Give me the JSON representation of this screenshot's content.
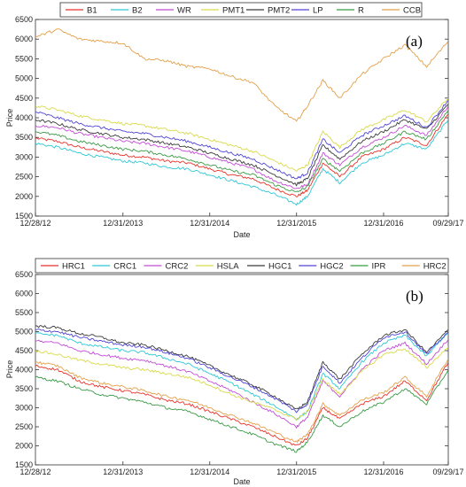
{
  "chart_data": [
    {
      "type": "line",
      "panel_label": "(a)",
      "xlabel": "Date",
      "ylabel": "Price",
      "ylim": [
        1500,
        6500
      ],
      "yticks": [
        1500,
        2000,
        2500,
        3000,
        3500,
        4000,
        4500,
        5000,
        5500,
        6000,
        6500
      ],
      "x_ticks": [
        "12/28/12",
        "12/31/2013",
        "12/31/2014",
        "12/31/2015",
        "12/31/2016",
        "09/29/17"
      ],
      "x_tick_dates": [
        "2012-12-28",
        "2013-12-31",
        "2014-12-31",
        "2015-12-31",
        "2016-12-31",
        "2017-09-29"
      ],
      "legend_position": "top",
      "x_dates": [
        "2012-12-28",
        "2013-03-31",
        "2013-06-30",
        "2013-09-30",
        "2013-12-31",
        "2014-03-31",
        "2014-06-30",
        "2014-09-30",
        "2014-12-31",
        "2015-03-31",
        "2015-06-30",
        "2015-09-30",
        "2015-12-31",
        "2016-02-15",
        "2016-04-20",
        "2016-06-30",
        "2016-09-30",
        "2016-12-31",
        "2017-03-31",
        "2017-06-30",
        "2017-09-29"
      ],
      "series": [
        {
          "name": "B1",
          "color": "#e8332b",
          "values": [
            3480,
            3400,
            3250,
            3150,
            3050,
            3000,
            2900,
            2850,
            2700,
            2550,
            2450,
            2200,
            2000,
            2150,
            2850,
            2500,
            3000,
            3200,
            3500,
            3300,
            4100
          ]
        },
        {
          "name": "B2",
          "color": "#2ec7d6",
          "values": [
            3350,
            3250,
            3100,
            3000,
            2900,
            2850,
            2750,
            2700,
            2550,
            2400,
            2250,
            2050,
            1800,
            2000,
            2700,
            2350,
            2850,
            3050,
            3350,
            3200,
            3950
          ]
        },
        {
          "name": "WR",
          "color": "#c34bd6",
          "values": [
            3800,
            3750,
            3600,
            3500,
            3400,
            3350,
            3250,
            3150,
            3000,
            2850,
            2700,
            2400,
            2200,
            2300,
            3100,
            2800,
            3250,
            3500,
            3800,
            3550,
            4300
          ]
        },
        {
          "name": "PMT1",
          "color": "#d9d94a",
          "values": [
            4300,
            4200,
            4050,
            3950,
            3850,
            3800,
            3700,
            3600,
            3450,
            3300,
            3150,
            2900,
            2650,
            2800,
            3650,
            3250,
            3700,
            3950,
            4200,
            3900,
            4500
          ]
        },
        {
          "name": "PMT2",
          "color": "#3a3a3a",
          "values": [
            3950,
            3850,
            3700,
            3600,
            3500,
            3450,
            3350,
            3250,
            3100,
            2950,
            2800,
            2550,
            2300,
            2450,
            3300,
            2950,
            3400,
            3650,
            3950,
            3700,
            4350
          ]
        },
        {
          "name": "LP",
          "color": "#5045d6",
          "values": [
            4150,
            4000,
            3850,
            3750,
            3650,
            3600,
            3500,
            3400,
            3250,
            3100,
            2950,
            2700,
            2450,
            2600,
            3450,
            3100,
            3550,
            3800,
            4050,
            3750,
            4450
          ]
        },
        {
          "name": "R",
          "color": "#3a9a45",
          "values": [
            3650,
            3550,
            3400,
            3300,
            3200,
            3150,
            3050,
            2950,
            2800,
            2650,
            2550,
            2300,
            2100,
            2250,
            2950,
            2650,
            3100,
            3350,
            3650,
            3450,
            4200
          ]
        },
        {
          "name": "CCB",
          "color": "#e3a14b",
          "values": [
            6050,
            6250,
            6000,
            5950,
            5900,
            5500,
            5450,
            5300,
            5250,
            5050,
            4900,
            4300,
            3900,
            4300,
            4950,
            4500,
            5100,
            5500,
            5850,
            5300,
            5950
          ]
        }
      ]
    },
    {
      "type": "line",
      "panel_label": "(b)",
      "xlabel": "Date",
      "ylabel": "Price",
      "ylim": [
        1500,
        6500
      ],
      "yticks": [
        1500,
        2000,
        2500,
        3000,
        3500,
        4000,
        4500,
        5000,
        5500,
        6000,
        6500
      ],
      "x_ticks": [
        "12/28/12",
        "12/31/2013",
        "12/31/2014",
        "12/31/2015",
        "12/31/2016",
        "09/29/17"
      ],
      "x_tick_dates": [
        "2012-12-28",
        "2013-12-31",
        "2014-12-31",
        "2015-12-31",
        "2016-12-31",
        "2017-09-29"
      ],
      "legend_position": "top",
      "x_dates": [
        "2012-12-28",
        "2013-03-31",
        "2013-06-30",
        "2013-09-30",
        "2013-12-31",
        "2014-03-31",
        "2014-06-30",
        "2014-09-30",
        "2014-12-31",
        "2015-03-31",
        "2015-06-30",
        "2015-09-30",
        "2015-12-31",
        "2016-02-15",
        "2016-04-20",
        "2016-06-30",
        "2016-09-30",
        "2016-12-31",
        "2017-03-31",
        "2017-06-30",
        "2017-09-29"
      ],
      "series": [
        {
          "name": "HRC1",
          "color": "#e8332b",
          "values": [
            4100,
            4000,
            3700,
            3550,
            3450,
            3350,
            3200,
            3100,
            2900,
            2700,
            2500,
            2250,
            2000,
            2200,
            3000,
            2700,
            3100,
            3300,
            3700,
            3200,
            4200
          ]
        },
        {
          "name": "CRC1",
          "color": "#2ec7d6",
          "values": [
            4950,
            4900,
            4700,
            4600,
            4500,
            4450,
            4300,
            4150,
            3900,
            3650,
            3350,
            3050,
            2700,
            2900,
            3900,
            3500,
            4200,
            4700,
            4900,
            4350,
            5000
          ]
        },
        {
          "name": "CRC2",
          "color": "#c34bd6",
          "values": [
            4750,
            4700,
            4500,
            4400,
            4300,
            4250,
            4100,
            3950,
            3700,
            3450,
            3150,
            2850,
            2500,
            2750,
            3700,
            3300,
            4000,
            4500,
            4700,
            4150,
            4800
          ]
        },
        {
          "name": "HSLA",
          "color": "#d9d94a",
          "values": [
            4500,
            4400,
            4250,
            4150,
            4050,
            4000,
            3900,
            3800,
            3600,
            3350,
            3150,
            2950,
            2700,
            2900,
            3750,
            3350,
            3950,
            4400,
            4550,
            4050,
            4600
          ]
        },
        {
          "name": "HGC1",
          "color": "#3a3a3a",
          "values": [
            5150,
            5100,
            4950,
            4850,
            4700,
            4650,
            4500,
            4350,
            4100,
            3850,
            3600,
            3300,
            2950,
            3150,
            4200,
            3750,
            4400,
            4900,
            5050,
            4450,
            5050
          ]
        },
        {
          "name": "HGC2",
          "color": "#5045d6",
          "values": [
            5050,
            5000,
            4850,
            4750,
            4650,
            4600,
            4450,
            4300,
            4050,
            3800,
            3550,
            3250,
            2900,
            3100,
            4100,
            3650,
            4300,
            4850,
            5000,
            4400,
            5000
          ]
        },
        {
          "name": "IPR",
          "color": "#3a9a45",
          "values": [
            3800,
            3700,
            3500,
            3350,
            3250,
            3150,
            3000,
            2900,
            2700,
            2500,
            2300,
            2050,
            1850,
            2100,
            2800,
            2500,
            2900,
            3150,
            3500,
            3100,
            4000
          ]
        },
        {
          "name": "HRC2",
          "color": "#e3a14b",
          "values": [
            4200,
            4100,
            3800,
            3650,
            3550,
            3450,
            3300,
            3200,
            3000,
            2800,
            2600,
            2350,
            2100,
            2300,
            3100,
            2800,
            3200,
            3400,
            3800,
            3300,
            4300
          ]
        }
      ]
    }
  ]
}
